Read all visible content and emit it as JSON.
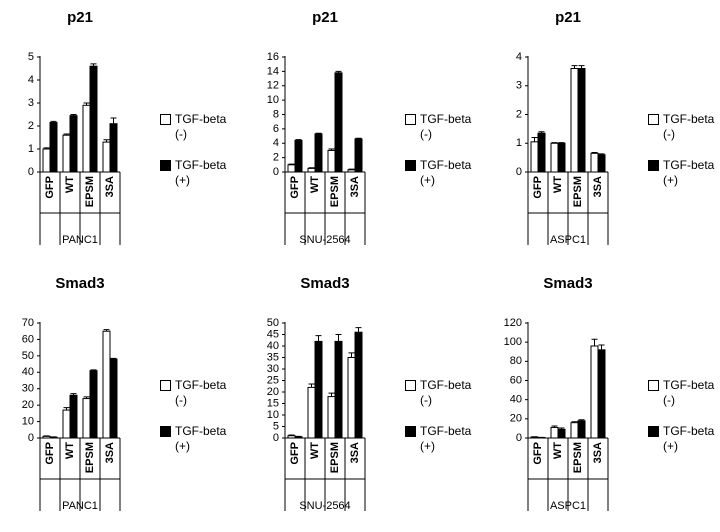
{
  "chart_data": [
    {
      "type": "bar",
      "title": "p21",
      "xlabel": "PANC1",
      "categories": [
        "GFP",
        "WT",
        "EPSM",
        "3SA"
      ],
      "ylim": [
        0,
        5
      ],
      "yticks": [
        0,
        1,
        2,
        3,
        4,
        5
      ],
      "grid": false,
      "series": [
        {
          "name": "TGF-beta (-)",
          "color": "#ffffff",
          "values": [
            1,
            1.6,
            2.9,
            1.3
          ],
          "errors": [
            0.05,
            0.05,
            0.1,
            0.1
          ]
        },
        {
          "name": "TGF-beta (+)",
          "color": "#000000",
          "values": [
            2.15,
            2.45,
            4.6,
            2.1
          ],
          "errors": [
            0.05,
            0.05,
            0.1,
            0.25
          ]
        }
      ]
    },
    {
      "type": "bar",
      "title": "p21",
      "xlabel": "SNU-2564",
      "categories": [
        "GFP",
        "WT",
        "EPSM",
        "3SA"
      ],
      "ylim": [
        0,
        16
      ],
      "yticks": [
        0,
        2,
        4,
        6,
        8,
        10,
        12,
        14,
        16
      ],
      "grid": false,
      "series": [
        {
          "name": "TGF-beta (-)",
          "color": "#ffffff",
          "values": [
            1,
            0.5,
            3,
            0.3
          ],
          "errors": [
            0.1,
            0.1,
            0.2,
            0.1
          ]
        },
        {
          "name": "TGF-beta (+)",
          "color": "#000000",
          "values": [
            4.4,
            5.3,
            13.8,
            4.6
          ],
          "errors": [
            0.1,
            0.1,
            0.2,
            0.1
          ]
        }
      ]
    },
    {
      "type": "bar",
      "title": "p21",
      "xlabel": "ASPC1",
      "categories": [
        "GFP",
        "WT",
        "EPSM",
        "3SA"
      ],
      "ylim": [
        0,
        4
      ],
      "yticks": [
        0,
        1,
        2,
        3,
        4
      ],
      "grid": false,
      "series": [
        {
          "name": "TGF-beta (-)",
          "color": "#ffffff",
          "values": [
            1.05,
            1,
            3.6,
            0.65
          ],
          "errors": [
            0.15,
            0.02,
            0.1,
            0.03
          ]
        },
        {
          "name": "TGF-beta (+)",
          "color": "#000000",
          "values": [
            1.35,
            1,
            3.6,
            0.6
          ],
          "errors": [
            0.05,
            0.02,
            0.1,
            0.03
          ]
        }
      ]
    },
    {
      "type": "bar",
      "title": "Smad3",
      "xlabel": "PANC1",
      "categories": [
        "GFP",
        "WT",
        "EPSM",
        "3SA"
      ],
      "ylim": [
        0,
        70
      ],
      "yticks": [
        0,
        10,
        20,
        30,
        40,
        50,
        60,
        70
      ],
      "grid": false,
      "series": [
        {
          "name": "TGF-beta (-)",
          "color": "#ffffff",
          "values": [
            1,
            17,
            24,
            65
          ],
          "errors": [
            0.3,
            1.5,
            1,
            1
          ]
        },
        {
          "name": "TGF-beta (+)",
          "color": "#000000",
          "values": [
            0.5,
            26,
            41,
            48
          ],
          "errors": [
            0.2,
            1,
            0.5,
            0.5
          ]
        }
      ]
    },
    {
      "type": "bar",
      "title": "Smad3",
      "xlabel": "SNU-2564",
      "categories": [
        "GFP",
        "WT",
        "EPSM",
        "3SA"
      ],
      "ylim": [
        0,
        50
      ],
      "yticks": [
        0,
        5,
        10,
        15,
        20,
        25,
        30,
        35,
        40,
        45,
        50
      ],
      "grid": false,
      "series": [
        {
          "name": "TGF-beta (-)",
          "color": "#ffffff",
          "values": [
            1,
            22,
            18,
            35
          ],
          "errors": [
            0.3,
            1.5,
            1.5,
            2
          ]
        },
        {
          "name": "TGF-beta (+)",
          "color": "#000000",
          "values": [
            0.5,
            42,
            42,
            46
          ],
          "errors": [
            0.2,
            2.5,
            3,
            2
          ]
        }
      ]
    },
    {
      "type": "bar",
      "title": "Smad3",
      "xlabel": "ASPC1",
      "categories": [
        "GFP",
        "WT",
        "EPSM",
        "3SA"
      ],
      "ylim": [
        0,
        120
      ],
      "yticks": [
        0,
        20,
        40,
        60,
        80,
        100,
        120
      ],
      "grid": false,
      "series": [
        {
          "name": "TGF-beta (-)",
          "color": "#ffffff",
          "values": [
            1,
            11,
            16,
            96
          ],
          "errors": [
            0.3,
            1.5,
            1,
            7
          ]
        },
        {
          "name": "TGF-beta (+)",
          "color": "#000000",
          "values": [
            0.5,
            9,
            18,
            92
          ],
          "errors": [
            0.2,
            1.5,
            1,
            5
          ]
        }
      ]
    }
  ]
}
